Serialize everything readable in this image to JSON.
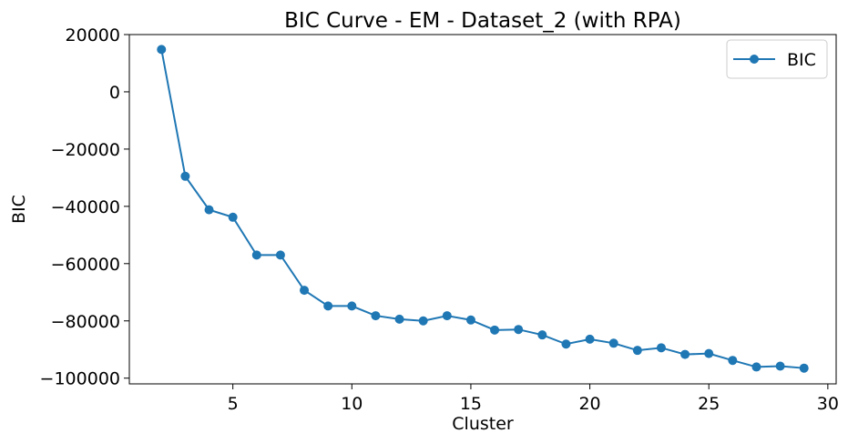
{
  "chart_data": {
    "type": "line",
    "title": "BIC Curve - EM - Dataset_2 (with RPA)",
    "xlabel": "Cluster",
    "ylabel": "BIC",
    "xlim": [
      0.65,
      30.35
    ],
    "ylim": [
      -102000,
      20000
    ],
    "grid": false,
    "legend_position": "top-right",
    "x_ticks": [
      5,
      10,
      15,
      20,
      25,
      30
    ],
    "y_ticks": [
      20000,
      0,
      -20000,
      -40000,
      -60000,
      -80000,
      -100000
    ],
    "x_tick_labels": [
      "5",
      "10",
      "15",
      "20",
      "25",
      "30"
    ],
    "y_tick_labels": [
      "20000",
      "0",
      "−20000",
      "−40000",
      "−60000",
      "−80000",
      "−100000"
    ],
    "series": [
      {
        "name": "BIC",
        "color": "#1f77b4",
        "marker": "circle",
        "x": [
          2,
          3,
          4,
          5,
          6,
          7,
          8,
          9,
          10,
          11,
          12,
          13,
          14,
          15,
          16,
          17,
          18,
          19,
          20,
          21,
          22,
          23,
          24,
          25,
          26,
          27,
          28,
          29
        ],
        "values": [
          14800,
          -29500,
          -41200,
          -43800,
          -57000,
          -57000,
          -69300,
          -74800,
          -74800,
          -78200,
          -79400,
          -80000,
          -78200,
          -79700,
          -83200,
          -83000,
          -84900,
          -88100,
          -86400,
          -87800,
          -90300,
          -89400,
          -91700,
          -91400,
          -93800,
          -96100,
          -95800,
          -96500
        ]
      }
    ]
  }
}
